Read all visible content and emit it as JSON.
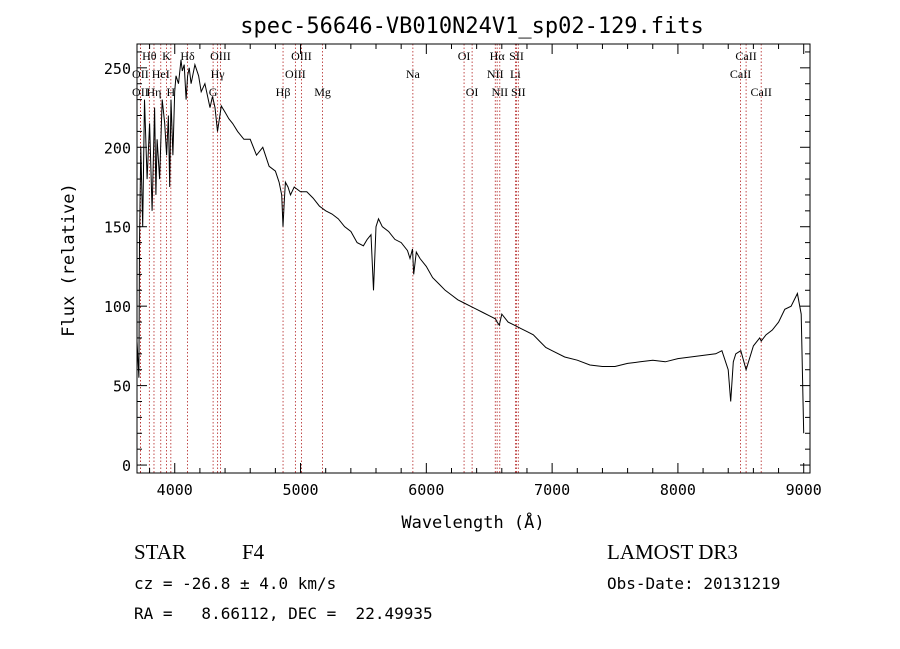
{
  "chart_data": {
    "type": "line",
    "title": "spec-56646-VB010N24V1_sp02-129.fits",
    "xlabel": "Wavelength (Å)",
    "ylabel": "Flux (relative)",
    "xlim": [
      3700,
      9050
    ],
    "ylim": [
      -5,
      265
    ],
    "x_ticks": [
      4000,
      5000,
      6000,
      7000,
      8000,
      9000
    ],
    "y_ticks": [
      0,
      50,
      100,
      150,
      200,
      250
    ],
    "grid": false,
    "line_color": "#000000",
    "series": [
      {
        "name": "flux",
        "x": [
          3700,
          3715,
          3720,
          3730,
          3745,
          3760,
          3780,
          3800,
          3820,
          3840,
          3850,
          3860,
          3880,
          3900,
          3920,
          3935,
          3950,
          3960,
          3970,
          3985,
          4000,
          4010,
          4030,
          4050,
          4060,
          4075,
          4090,
          4102,
          4115,
          4130,
          4160,
          4190,
          4210,
          4240,
          4280,
          4300,
          4320,
          4340,
          4370,
          4400,
          4430,
          4460,
          4500,
          4550,
          4600,
          4650,
          4700,
          4750,
          4800,
          4830,
          4850,
          4861,
          4870,
          4880,
          4900,
          4920,
          4950,
          5000,
          5050,
          5100,
          5150,
          5200,
          5250,
          5300,
          5350,
          5400,
          5450,
          5500,
          5530,
          5560,
          5580,
          5600,
          5620,
          5650,
          5700,
          5750,
          5800,
          5850,
          5870,
          5890,
          5900,
          5920,
          5950,
          6000,
          6050,
          6100,
          6150,
          6200,
          6250,
          6300,
          6350,
          6400,
          6450,
          6500,
          6550,
          6563,
          6580,
          6600,
          6650,
          6700,
          6750,
          6800,
          6850,
          6900,
          6950,
          7000,
          7100,
          7200,
          7300,
          7400,
          7500,
          7600,
          7700,
          7800,
          7900,
          8000,
          8100,
          8200,
          8300,
          8350,
          8400,
          8420,
          8440,
          8460,
          8500,
          8542,
          8600,
          8650,
          8662,
          8700,
          8750,
          8800,
          8850,
          8900,
          8950,
          8980,
          9000
        ],
        "y": [
          78,
          55,
          140,
          200,
          150,
          230,
          180,
          215,
          160,
          225,
          170,
          205,
          180,
          230,
          215,
          195,
          220,
          175,
          230,
          195,
          235,
          245,
          240,
          255,
          248,
          252,
          230,
          245,
          250,
          240,
          252,
          245,
          235,
          240,
          225,
          232,
          225,
          210,
          226,
          222,
          218,
          215,
          210,
          205,
          205,
          195,
          200,
          188,
          185,
          178,
          170,
          150,
          165,
          178,
          175,
          170,
          175,
          172,
          172,
          168,
          163,
          160,
          158,
          155,
          150,
          147,
          140,
          138,
          142,
          145,
          110,
          150,
          155,
          150,
          147,
          142,
          140,
          135,
          130,
          136,
          120,
          134,
          130,
          125,
          118,
          114,
          110,
          107,
          104,
          102,
          100,
          98,
          96,
          94,
          92,
          90,
          88,
          95,
          90,
          88,
          86,
          84,
          82,
          78,
          74,
          72,
          68,
          66,
          63,
          62,
          62,
          64,
          65,
          66,
          65,
          67,
          68,
          69,
          70,
          72,
          60,
          40,
          65,
          70,
          72,
          60,
          75,
          80,
          78,
          82,
          85,
          90,
          98,
          100,
          108,
          95,
          20
        ]
      }
    ],
    "line_labels": [
      {
        "label": "Hθ",
        "x": 3798,
        "row": 0
      },
      {
        "label": "OII",
        "x": 3727,
        "row": 1
      },
      {
        "label": "HeI",
        "x": 3889,
        "row": 1
      },
      {
        "label": "OII",
        "x": 3727,
        "row": 2
      },
      {
        "label": "Hη",
        "x": 3835,
        "row": 2
      },
      {
        "label": "K",
        "x": 3934,
        "row": 0
      },
      {
        "label": "H",
        "x": 3969,
        "row": 2
      },
      {
        "label": "Hδ",
        "x": 4102,
        "row": 0
      },
      {
        "label": "OIII",
        "x": 4363,
        "row": 0
      },
      {
        "label": "Hγ",
        "x": 4341,
        "row": 1
      },
      {
        "label": "G",
        "x": 4305,
        "row": 2
      },
      {
        "label": "Hβ",
        "x": 4861,
        "row": 2
      },
      {
        "label": "OIII",
        "x": 5007,
        "row": 0
      },
      {
        "label": "OIII",
        "x": 4959,
        "row": 1
      },
      {
        "label": "Mg",
        "x": 5175,
        "row": 2
      },
      {
        "label": "Na",
        "x": 5893,
        "row": 1
      },
      {
        "label": "OI",
        "x": 6300,
        "row": 0
      },
      {
        "label": "OI",
        "x": 6364,
        "row": 2
      },
      {
        "label": "Hα",
        "x": 6563,
        "row": 0
      },
      {
        "label": "SII",
        "x": 6717,
        "row": 0
      },
      {
        "label": "NII",
        "x": 6548,
        "row": 1
      },
      {
        "label": "Li",
        "x": 6708,
        "row": 1
      },
      {
        "label": "NII",
        "x": 6584,
        "row": 2
      },
      {
        "label": "SII",
        "x": 6731,
        "row": 2
      },
      {
        "label": "CaII",
        "x": 8542,
        "row": 0
      },
      {
        "label": "CaII",
        "x": 8498,
        "row": 1
      },
      {
        "label": "CaII",
        "x": 8662,
        "row": 2
      }
    ]
  },
  "info": {
    "obj_class": "STAR",
    "subclass": "F4",
    "survey": "LAMOST DR3",
    "cz": "cz = -26.8 ± 4.0 km/s",
    "obs_date": "Obs-Date: 20131219",
    "radec": "RA =   8.66112, DEC =  22.49935"
  }
}
